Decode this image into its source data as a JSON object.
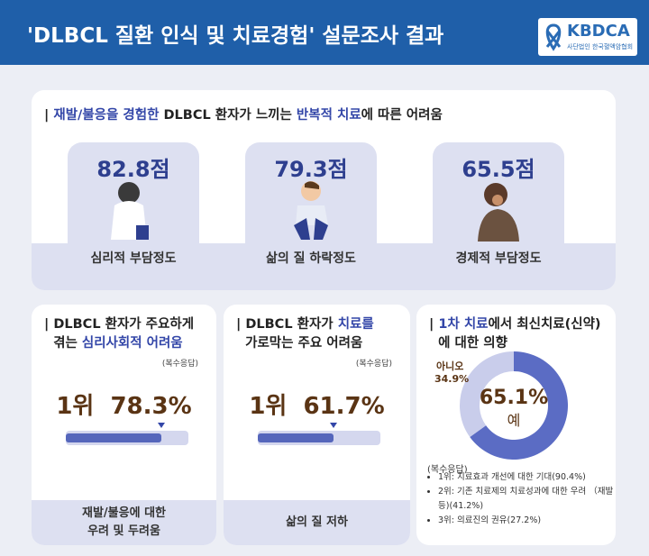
{
  "header": {
    "title": "'DLBCL 질환 인식 및 치료경험' 설문조사 결과",
    "logo": "KBDCA",
    "logo_sub": "사단법인 한국혈액암협회"
  },
  "section1": {
    "title_parts": [
      "재발/불응을 경험한",
      "DLBCL 환자가 느끼는",
      "반복적 치료",
      "에 따른 어려움"
    ],
    "cards": [
      {
        "score": "82.8점",
        "label": "심리적 부담정도"
      },
      {
        "score": "79.3점",
        "label": "삶의 질 하락정도"
      },
      {
        "score": "65.5점",
        "label": "경제적 부담정도"
      }
    ]
  },
  "section2": {
    "title_parts": [
      "DLBCL 환자가 주요하게",
      "겪는",
      "심리사회적 어려움"
    ],
    "note": "(복수응답)",
    "rank": "1위",
    "value": 78.3,
    "value_label": "78.3%",
    "answer": [
      "재발/불응에 대한",
      "우려 및 두려움"
    ]
  },
  "section3": {
    "title_parts": [
      "DLBCL 환자가",
      "치료를",
      "가로막는 주요 어려움"
    ],
    "note": "(복수응답)",
    "rank": "1위",
    "value": 61.7,
    "value_label": "61.7%",
    "answer": [
      "삶의 질 저하"
    ]
  },
  "section4": {
    "title_parts": [
      "1차 치료",
      "에서 최신치료(신약)",
      "에 대한 의향"
    ],
    "donut": [
      {
        "label": "예",
        "value": 65.1,
        "value_label": "65.1%",
        "color": "#5b6cc4"
      },
      {
        "label": "아니오",
        "value": 34.9,
        "value_label": "34.9%",
        "color": "#c9cdeb"
      }
    ],
    "note": "(복수응답)",
    "items": [
      "1위: 치료효과 개선에 대한 기대(90.4%)",
      "2위: 기존 치료제의 치료성과에 대한 우려 （재발 등)(41.2%)",
      "3위: 의료진의 권유(27.2%)"
    ]
  }
}
